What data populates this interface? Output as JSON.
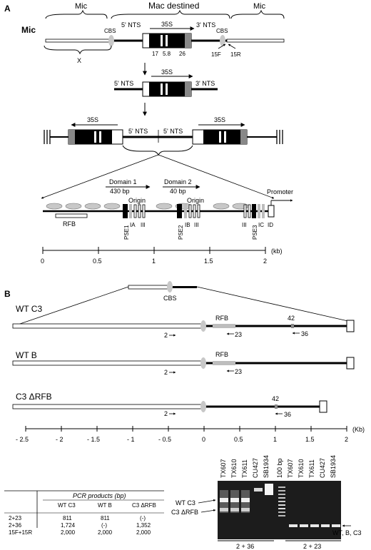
{
  "panel_a": {
    "label": "A",
    "top_labels": {
      "mic_left": "Mic",
      "mac_destined": "Mac destined",
      "mic_right": "Mic"
    },
    "row1": {
      "mic": "Mic",
      "cbs_left": "CBS",
      "nts5": "5' NTS",
      "s35": "35S",
      "nts3": "3' NTS",
      "cbs_right": "CBS",
      "n17": "17",
      "n58": "5.8",
      "n26": "26",
      "f15": "15F",
      "r15": "15R",
      "x": "X"
    },
    "row2": {
      "nts5": "5' NTS",
      "s35": "35S",
      "nts3": "3' NTS"
    },
    "row3": {
      "s35_left": "35S",
      "nts5_left": "5' NTS",
      "nts5_right": "5' NTS",
      "s35_right": "35S"
    },
    "detail": {
      "domain1": "Domain 1",
      "bp430": "430 bp",
      "domain2": "Domain 2",
      "bp40": "40 bp",
      "origin1": "Origin",
      "origin2": "Origin",
      "promoter": "Promoter",
      "rfb": "RFB",
      "pse1": "PSE1",
      "pse2": "PSE2",
      "pse3": "PSE3",
      "ia": "IA",
      "iii_1": "III",
      "ib": "IB",
      "iii_2": "III",
      "iii_3": "III",
      "ic": "IC",
      "id": "ID"
    },
    "scale": {
      "ticks": [
        "0",
        "0.5",
        "1",
        "1.5",
        "2"
      ],
      "unit": "(kb)"
    }
  },
  "panel_b": {
    "label": "B",
    "cbs": "CBS",
    "constructs": {
      "wtc3": {
        "title": "WT C3",
        "rfb": "RFB",
        "n42": "42",
        "p2": "2",
        "p23": "23",
        "p36": "36"
      },
      "wtb": {
        "title": "WT B",
        "rfb": "RFB",
        "p2": "2",
        "p23": "23"
      },
      "c3d": {
        "title": "C3 ΔRFB",
        "n42": "42",
        "p2": "2",
        "p36": "36"
      }
    },
    "scale": {
      "ticks": [
        "- 2.5",
        "- 2",
        "- 1.5",
        "- 1",
        "- 0.5",
        "0",
        "0.5",
        "1",
        "1.5",
        "2"
      ],
      "unit": "(Kb)"
    },
    "table": {
      "title": "PCR products (bp)",
      "headers": [
        "WT C3",
        "WT B",
        "C3 ΔRFB"
      ],
      "rows": [
        {
          "label": "2+23",
          "cells": [
            "811",
            "811",
            "(-)"
          ]
        },
        {
          "label": "2+36",
          "cells": [
            "1,724",
            "(-)",
            "1,352"
          ]
        },
        {
          "label": "15F+15R",
          "cells": [
            "2,000",
            "2,000",
            "2,000"
          ]
        }
      ]
    },
    "gel": {
      "lanes": [
        "TX607",
        "TX610",
        "TX611",
        "CU427",
        "SB1934",
        "100 bp",
        "TX607",
        "TX610",
        "TX611",
        "CU427",
        "SB1934"
      ],
      "left_labels": {
        "wtc3": "WT C3",
        "c3d": "C3 ΔRFB"
      },
      "right_label": "WT, B, C3",
      "group_left": "2 + 36",
      "group_right": "2 + 23"
    }
  }
}
